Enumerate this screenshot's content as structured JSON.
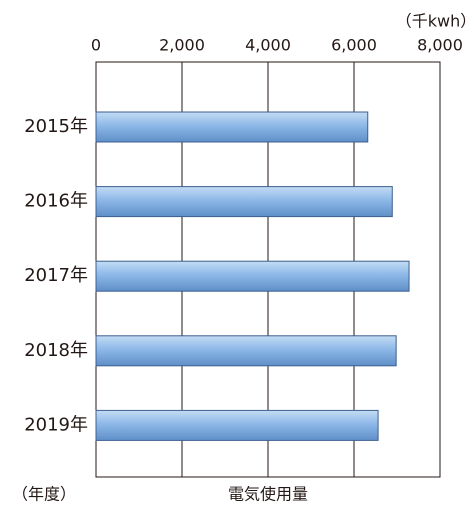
{
  "chart_data": {
    "type": "bar",
    "orientation": "horizontal",
    "unit_label": "（千kwh）",
    "xlabel": "電気使用量",
    "ylabel": "（年度）",
    "categories": [
      "2015年",
      "2016年",
      "2017年",
      "2018年",
      "2019年"
    ],
    "values": [
      6320,
      6890,
      7280,
      6980,
      6560
    ],
    "color": "#8db8e8",
    "xlim": [
      0,
      8000
    ],
    "xticks": [
      0,
      {
        "value": 2000,
        "label": "2,000"
      },
      {
        "value": 4000,
        "label": "4,000"
      },
      {
        "value": 6000,
        "label": "6,000"
      },
      {
        "value": 8000,
        "label": "8,000"
      }
    ],
    "grid": true
  }
}
